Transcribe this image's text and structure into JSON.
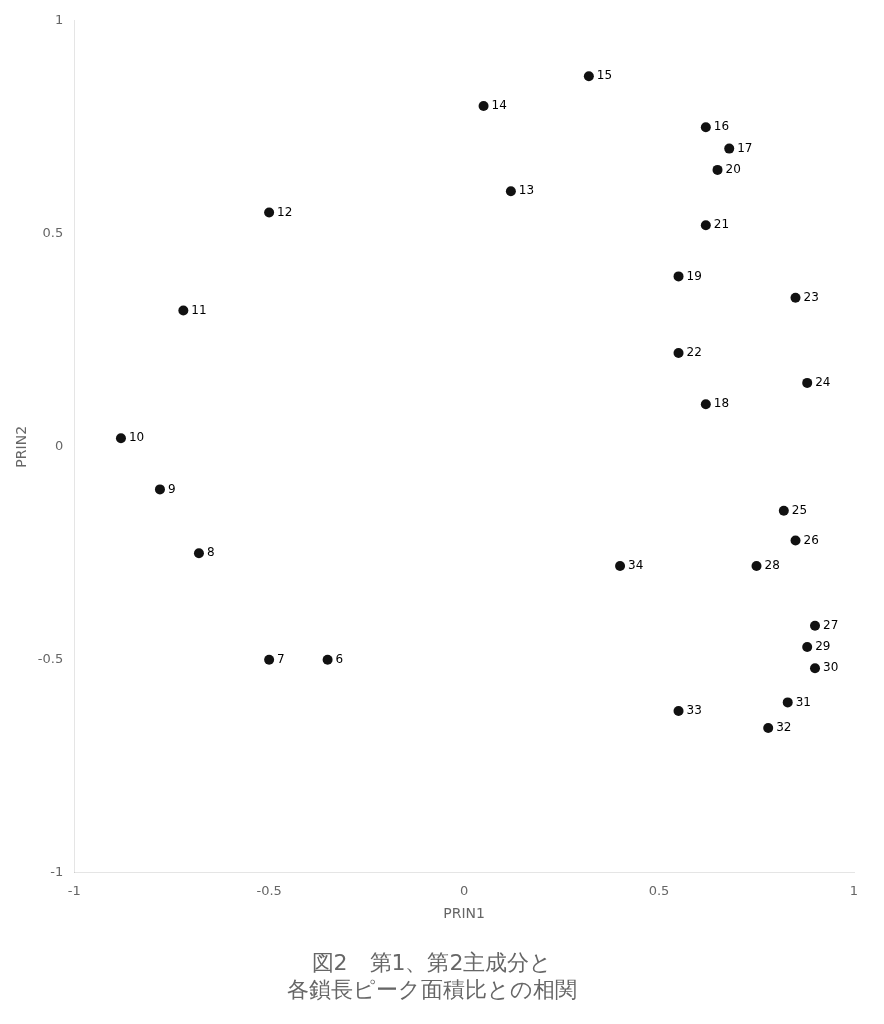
{
  "chart_data": {
    "type": "scatter",
    "title": [
      "図2　第1、第2主成分と",
      "各鎖長ピーク面積比との相関"
    ],
    "x_label": "PRIN1",
    "y_label": "PRIN2",
    "x": [
      -0.35,
      -0.5,
      -0.68,
      -0.78,
      -0.88,
      -0.72,
      -0.5,
      0.12,
      0.05,
      0.32,
      0.62,
      0.68,
      0.62,
      0.55,
      0.65,
      0.62,
      0.55,
      0.85,
      0.88,
      0.82,
      0.85,
      0.9,
      0.75,
      0.88,
      0.9,
      0.83,
      0.78,
      0.55,
      0.4
    ],
    "values": [
      -0.5,
      -0.5,
      -0.25,
      -0.1,
      0.02,
      0.32,
      0.55,
      0.6,
      0.8,
      0.87,
      0.75,
      0.7,
      0.1,
      0.4,
      0.65,
      0.52,
      0.22,
      0.35,
      0.15,
      -0.15,
      -0.22,
      -0.42,
      -0.28,
      -0.47,
      -0.52,
      -0.6,
      -0.66,
      -0.62,
      -0.28
    ],
    "labels": [
      "6",
      "7",
      "8",
      "9",
      "10",
      "11",
      "12",
      "13",
      "14",
      "15",
      "16",
      "17",
      "18",
      "19",
      "20",
      "21",
      "22",
      "23",
      "24",
      "25",
      "26",
      "27",
      "28",
      "29",
      "30",
      "31",
      "32",
      "33",
      "34"
    ],
    "color": "#111111",
    "marker": "circle",
    "xlim": [
      -1,
      1
    ],
    "ylim": [
      -1,
      1
    ],
    "xticks": [
      -1,
      -0.5,
      0,
      0.5,
      1
    ],
    "yticks": [
      -1,
      -0.5,
      0,
      0.5,
      1
    ],
    "grid": false
  }
}
